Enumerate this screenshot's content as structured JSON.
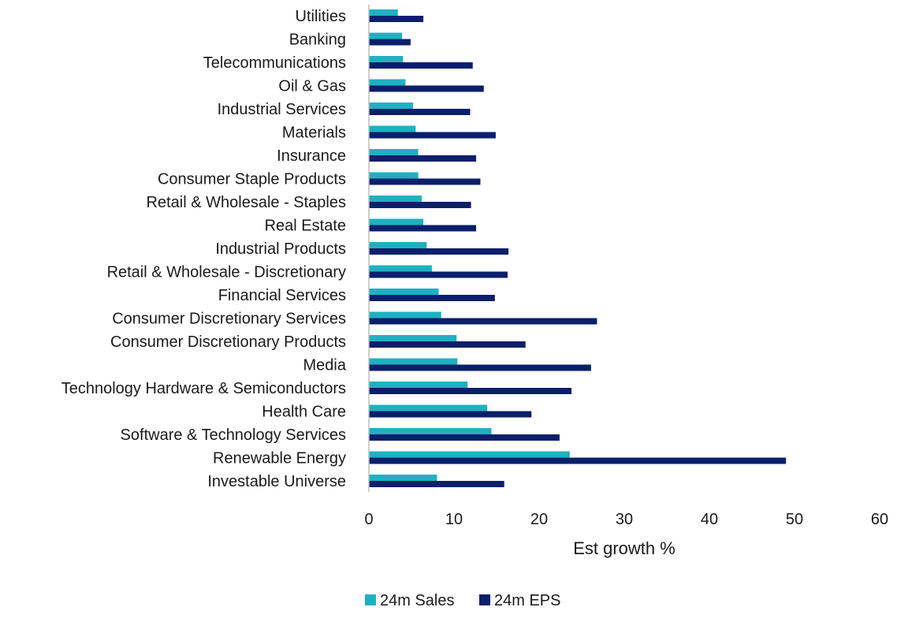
{
  "chart_data": {
    "type": "bar",
    "orientation": "horizontal",
    "title": "",
    "xlabel": "Est growth %",
    "ylabel": "",
    "xlim": [
      0,
      60
    ],
    "xticks": [
      0,
      10,
      20,
      30,
      40,
      50,
      60
    ],
    "grid": false,
    "legend_position": "bottom",
    "categories": [
      "Utilities",
      "Banking",
      "Telecommunications",
      "Oil & Gas",
      "Industrial Services",
      "Materials",
      "Insurance",
      "Consumer Staple Products",
      "Retail & Wholesale - Staples",
      "Real Estate",
      "Industrial Products",
      "Retail & Wholesale - Discretionary",
      "Financial Services",
      "Consumer Discretionary Services",
      "Consumer Discretionary Products",
      "Media",
      "Technology Hardware & Semiconductors",
      "Health Care",
      "Software & Technology Services",
      "Renewable Energy",
      "Investable Universe"
    ],
    "series": [
      {
        "name": "24m Sales",
        "color": "#1fb1c1",
        "values": [
          3.4,
          3.9,
          4.0,
          4.3,
          5.2,
          5.5,
          5.8,
          5.8,
          6.2,
          6.4,
          6.8,
          7.4,
          8.2,
          8.5,
          10.3,
          10.4,
          11.6,
          13.9,
          14.4,
          23.6,
          8.0
        ]
      },
      {
        "name": "24m EPS",
        "color": "#0b1f6b",
        "values": [
          6.4,
          4.9,
          12.2,
          13.5,
          11.9,
          14.9,
          12.6,
          13.1,
          12.0,
          12.6,
          16.4,
          16.3,
          14.8,
          26.8,
          18.4,
          26.1,
          23.8,
          19.1,
          22.4,
          49.0,
          15.9
        ]
      }
    ]
  }
}
